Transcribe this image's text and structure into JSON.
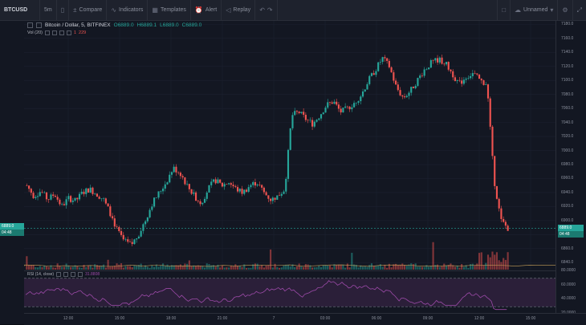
{
  "toolbar": {
    "symbol": "BTCUSD",
    "interval": "5m",
    "compare": "Compare",
    "indicators": "Indicators",
    "templates": "Templates",
    "alert": "Alert",
    "replay": "Replay",
    "account": "Unnamed"
  },
  "legend": {
    "title": "Bitcoin / Dollar, 5, BITFINEX",
    "open": "O6889.0",
    "high": "H6889.1",
    "low": "L6889.0",
    "close": "C6889.0",
    "vol_label": "Vol (20)",
    "vol_value": "1",
    "vol_value2": "229",
    "rsi_label": "RSI (14, close)",
    "rsi_value": "31.8808"
  },
  "price_labels": {
    "current": "6889.0",
    "sub": "04:48",
    "current_left": "6889.0",
    "sub_left": "04:48"
  },
  "colors": {
    "up": "#26a69a",
    "down": "#ef5350",
    "rsi": "#9c4aa8",
    "background": "#131722"
  },
  "chart_data": {
    "type": "candlestick",
    "title": "Bitcoin / Dollar, 5, BITFINEX",
    "ylim": [
      6830,
      7185
    ],
    "y_ticks": [
      "7180.0",
      "7160.0",
      "7140.0",
      "7120.0",
      "7100.0",
      "7080.0",
      "7060.0",
      "7040.0",
      "7020.0",
      "7000.0",
      "6980.0",
      "6960.0",
      "6940.0",
      "6920.0",
      "6900.0",
      "6880.0",
      "6860.0",
      "6840.0"
    ],
    "x_ticks": [
      "12:00",
      "15:00",
      "18:00",
      "21:00",
      "7",
      "03:00",
      "06:00",
      "09:00",
      "12:00",
      "15:00"
    ],
    "close_path": [
      {
        "t": 0,
        "v": 6950
      },
      {
        "t": 2,
        "v": 6935
      },
      {
        "t": 4,
        "v": 6942
      },
      {
        "t": 6,
        "v": 6930
      },
      {
        "t": 8,
        "v": 6938
      },
      {
        "t": 10,
        "v": 6920
      },
      {
        "t": 12,
        "v": 6932
      },
      {
        "t": 14,
        "v": 6928
      },
      {
        "t": 16,
        "v": 6940
      },
      {
        "t": 18,
        "v": 6945
      },
      {
        "t": 20,
        "v": 6938
      },
      {
        "t": 22,
        "v": 6930
      },
      {
        "t": 24,
        "v": 6910
      },
      {
        "t": 26,
        "v": 6885
      },
      {
        "t": 28,
        "v": 6870
      },
      {
        "t": 30,
        "v": 6865
      },
      {
        "t": 32,
        "v": 6880
      },
      {
        "t": 34,
        "v": 6900
      },
      {
        "t": 36,
        "v": 6925
      },
      {
        "t": 38,
        "v": 6940
      },
      {
        "t": 40,
        "v": 6955
      },
      {
        "t": 42,
        "v": 6975
      },
      {
        "t": 44,
        "v": 6968
      },
      {
        "t": 46,
        "v": 6950
      },
      {
        "t": 48,
        "v": 6935
      },
      {
        "t": 50,
        "v": 6925
      },
      {
        "t": 52,
        "v": 6945
      },
      {
        "t": 54,
        "v": 6958
      },
      {
        "t": 56,
        "v": 6950
      },
      {
        "t": 58,
        "v": 6955
      },
      {
        "t": 60,
        "v": 6945
      },
      {
        "t": 62,
        "v": 6940
      },
      {
        "t": 64,
        "v": 6950
      },
      {
        "t": 66,
        "v": 6955
      },
      {
        "t": 68,
        "v": 6940
      },
      {
        "t": 70,
        "v": 6930
      },
      {
        "t": 72,
        "v": 6935
      },
      {
        "t": 74,
        "v": 6945
      },
      {
        "t": 76,
        "v": 7050
      },
      {
        "t": 78,
        "v": 7055
      },
      {
        "t": 80,
        "v": 7045
      },
      {
        "t": 82,
        "v": 7038
      },
      {
        "t": 84,
        "v": 7050
      },
      {
        "t": 86,
        "v": 7065
      },
      {
        "t": 88,
        "v": 7070
      },
      {
        "t": 90,
        "v": 7055
      },
      {
        "t": 92,
        "v": 7060
      },
      {
        "t": 94,
        "v": 7068
      },
      {
        "t": 96,
        "v": 7080
      },
      {
        "t": 98,
        "v": 7100
      },
      {
        "t": 100,
        "v": 7115
      },
      {
        "t": 102,
        "v": 7132
      },
      {
        "t": 104,
        "v": 7120
      },
      {
        "t": 106,
        "v": 7090
      },
      {
        "t": 108,
        "v": 7075
      },
      {
        "t": 110,
        "v": 7085
      },
      {
        "t": 112,
        "v": 7100
      },
      {
        "t": 114,
        "v": 7115
      },
      {
        "t": 116,
        "v": 7125
      },
      {
        "t": 118,
        "v": 7130
      },
      {
        "t": 120,
        "v": 7125
      },
      {
        "t": 122,
        "v": 7110
      },
      {
        "t": 124,
        "v": 7095
      },
      {
        "t": 126,
        "v": 7105
      },
      {
        "t": 128,
        "v": 7110
      },
      {
        "t": 130,
        "v": 7100
      },
      {
        "t": 132,
        "v": 7095
      },
      {
        "t": 134,
        "v": 6960
      },
      {
        "t": 136,
        "v": 6900
      },
      {
        "t": 138,
        "v": 6889
      }
    ],
    "rsi_ylim": [
      20,
      80
    ],
    "rsi_ticks": [
      "80.0000",
      "60.0000",
      "40.0000",
      "20.0000"
    ],
    "rsi_bands": [
      70,
      30
    ]
  }
}
